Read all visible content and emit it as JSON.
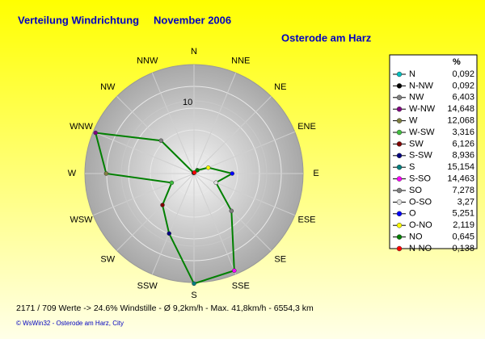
{
  "chart_data": {
    "type": "polar",
    "title": "Verteilung Windrichtung",
    "period": "November 2006",
    "subtitle": "Osterode am Harz",
    "legend_title": "%",
    "directions": [
      "N",
      "NNE",
      "NE",
      "ENE",
      "E",
      "ESE",
      "SE",
      "SSE",
      "S",
      "SSW",
      "SW",
      "WSW",
      "W",
      "WNW",
      "NW",
      "NNW"
    ],
    "rlim": [
      0,
      15
    ],
    "rticks": [
      10
    ],
    "line_color": "#008000",
    "series": [
      {
        "name": "N",
        "color": "#00c0c0"
      },
      {
        "name": "N-NW",
        "color": "#000000"
      },
      {
        "name": "NW",
        "color": "#808080"
      },
      {
        "name": "W-NW",
        "color": "#800080"
      },
      {
        "name": "W",
        "color": "#808040"
      },
      {
        "name": "W-SW",
        "color": "#40c040"
      },
      {
        "name": "SW",
        "color": "#800000"
      },
      {
        "name": "S-SW",
        "color": "#000080"
      },
      {
        "name": "S",
        "color": "#008080"
      },
      {
        "name": "S-SO",
        "color": "#ff00ff"
      },
      {
        "name": "SO",
        "color": "#808080"
      },
      {
        "name": "O-SO",
        "color": "#e0e0e0"
      },
      {
        "name": "O",
        "color": "#0000ff"
      },
      {
        "name": "O-NO",
        "color": "#ffff00"
      },
      {
        "name": "NO",
        "color": "#008000"
      },
      {
        "name": "N-NO",
        "color": "#ff0000"
      }
    ],
    "values": [
      0.092,
      0.092,
      6.403,
      14.648,
      12.068,
      3.316,
      6.126,
      8.936,
      15.154,
      14.463,
      7.278,
      3.27,
      5.251,
      2.119,
      0.645,
      0.138
    ],
    "value_labels": [
      "0,092",
      "0,092",
      "6,403",
      "14,648",
      "12,068",
      "3,316",
      "6,126",
      "8,936",
      "15,154",
      "14,463",
      "7,278",
      "3,27",
      "5,251",
      "2,119",
      "0,645",
      "0,138"
    ],
    "footer": "2171 / 709 Werte  -> 24.6% Windstille   -   Ø 9,2km/h  -  Max. 41,8km/h   -   6554,3 km",
    "copyright": "© WsWin32  -  Osterode am Harz, City"
  }
}
